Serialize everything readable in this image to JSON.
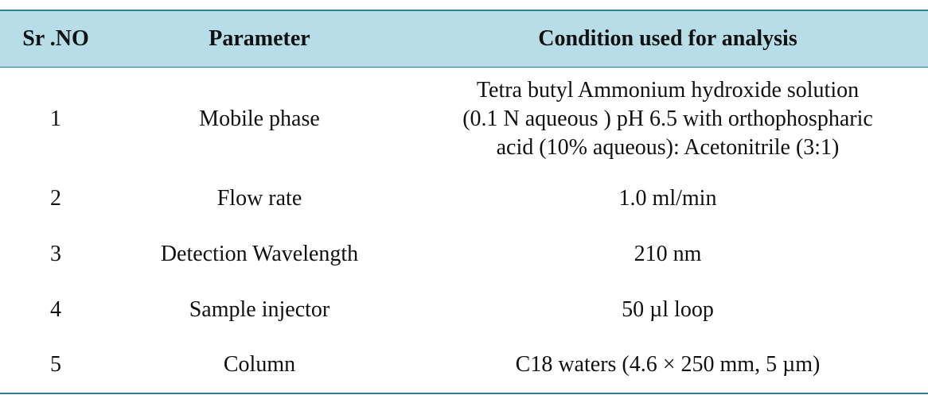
{
  "table": {
    "columns": [
      "Sr .NO",
      "Parameter",
      "Condition used for analysis"
    ],
    "rows": [
      [
        "1",
        "Mobile phase",
        [
          "Tetra butyl Ammonium hydroxide solution",
          "(0.1 N aqueous ) pH 6.5 with orthophospharic",
          "acid (10% aqueous): Acetonitrile (3:1)"
        ]
      ],
      [
        "2",
        "Flow rate",
        "1.0 ml/min"
      ],
      [
        "3",
        "Detection Wavelength",
        "210 nm"
      ],
      [
        "4",
        "Sample injector",
        "50 µl loop"
      ],
      [
        "5",
        "Column",
        "C18 waters (4.6 × 250 mm, 5 µm)"
      ]
    ]
  }
}
